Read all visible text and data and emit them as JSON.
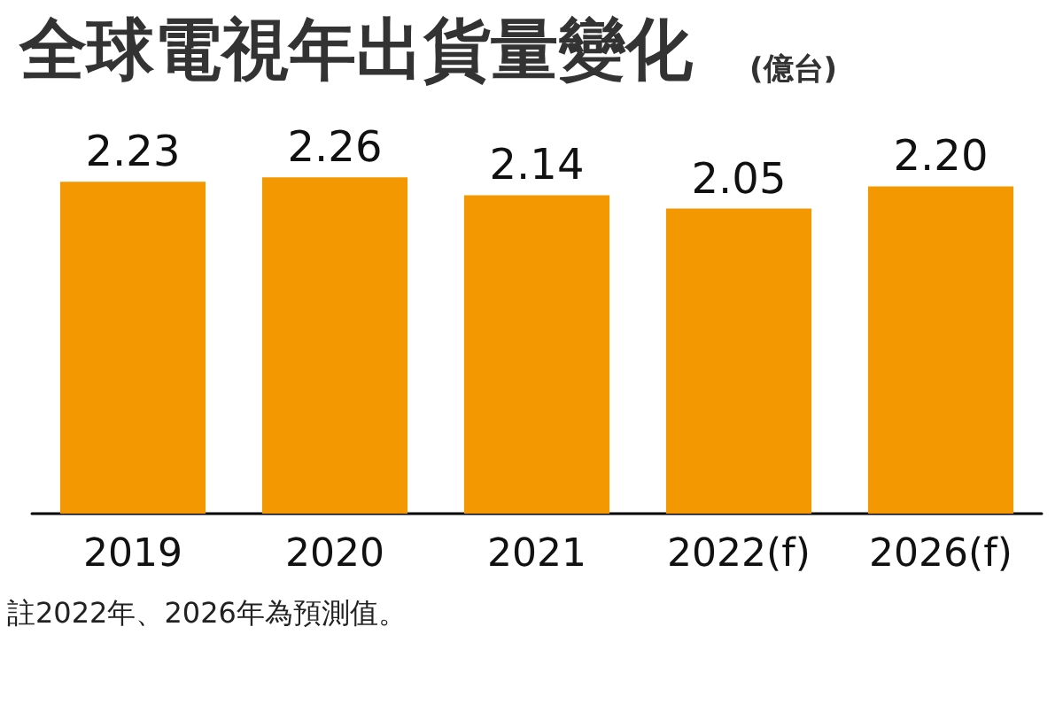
{
  "chart_data": {
    "type": "bar",
    "title": "全球電視年出貨量變化",
    "subtitle": "(億台)",
    "categories": [
      "2019",
      "2020",
      "2021",
      "2022(f)",
      "2026(f)"
    ],
    "values": [
      2.23,
      2.26,
      2.14,
      2.05,
      2.2
    ],
    "color": "#f39800",
    "value_labels": [
      "2.23",
      "2.26",
      "2.14",
      "2.05",
      "2.20"
    ],
    "tick_labels": "x",
    "annotations": [
      "註2022年、2026年為預測值。"
    ]
  }
}
